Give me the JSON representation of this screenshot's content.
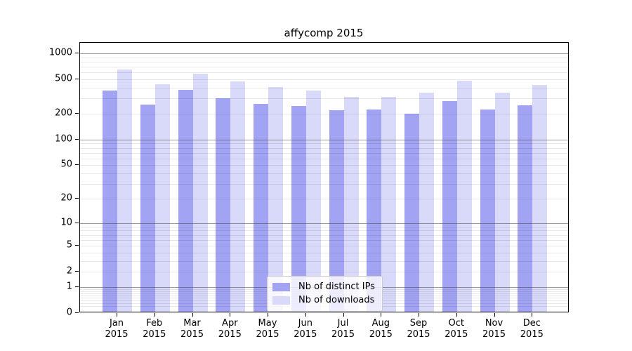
{
  "title": "affycomp 2015",
  "chart_data": {
    "type": "bar",
    "title": "affycomp 2015",
    "xlabel": "",
    "ylabel": "",
    "yscale": "log1p",
    "ylim": [
      0,
      1320
    ],
    "grid": true,
    "legend_position": "inside lower-center",
    "yticks": [
      0,
      1,
      2,
      5,
      10,
      20,
      50,
      100,
      200,
      500,
      1000
    ],
    "major_grid_values": [
      1,
      10,
      100,
      1000
    ],
    "categories": [
      {
        "month": "Jan",
        "year": "2015"
      },
      {
        "month": "Feb",
        "year": "2015"
      },
      {
        "month": "Mar",
        "year": "2015"
      },
      {
        "month": "Apr",
        "year": "2015"
      },
      {
        "month": "May",
        "year": "2015"
      },
      {
        "month": "Jun",
        "year": "2015"
      },
      {
        "month": "Jul",
        "year": "2015"
      },
      {
        "month": "Aug",
        "year": "2015"
      },
      {
        "month": "Sep",
        "year": "2015"
      },
      {
        "month": "Oct",
        "year": "2015"
      },
      {
        "month": "Nov",
        "year": "2015"
      },
      {
        "month": "Dec",
        "year": "2015"
      }
    ],
    "series": [
      {
        "name": "Nb of distinct IPs",
        "color": "#a3a3f3",
        "values": [
          355,
          245,
          365,
          288,
          252,
          235,
          210,
          215,
          193,
          268,
          215,
          240
        ]
      },
      {
        "name": "Nb of downloads",
        "color": "#d9d9f9",
        "values": [
          620,
          425,
          555,
          455,
          395,
          360,
          303,
          300,
          340,
          460,
          338,
          415
        ]
      }
    ]
  }
}
